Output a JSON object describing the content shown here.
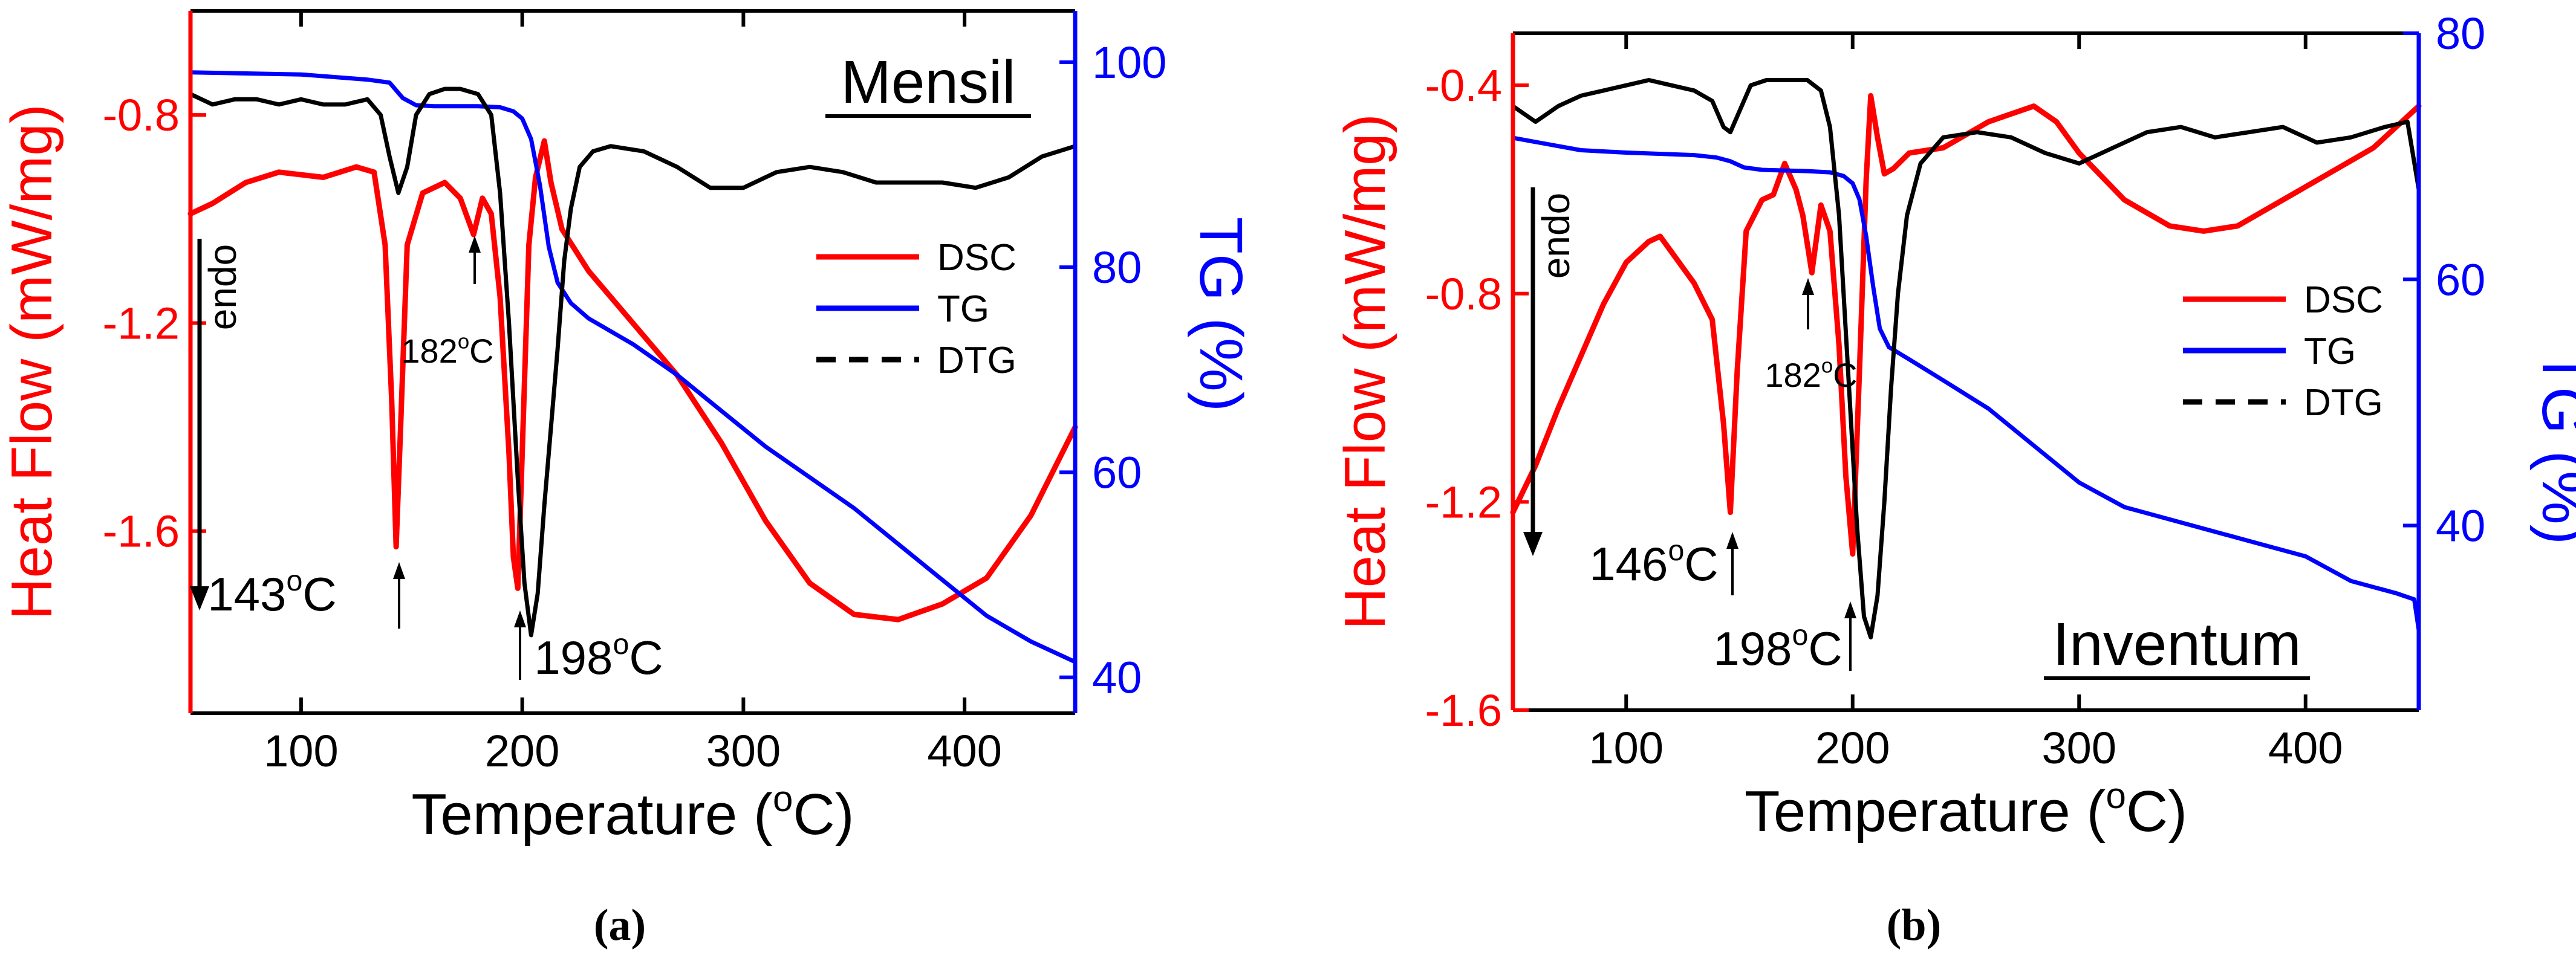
{
  "chart_data": [
    {
      "type": "line",
      "panel_label": "(a)",
      "sample_name": "Mensil",
      "xlabel": "Temperature (",
      "xlabel_unit_sup": "o",
      "xlabel_unit_end": "C)",
      "ylabel_left": "Heat Flow (mW/mg)",
      "ylabel_right": "TG (%)",
      "xlim": [
        50,
        450
      ],
      "ylim_left": [
        -1.95,
        -0.6
      ],
      "ylim_right": [
        36.5,
        105
      ],
      "x_ticks": [
        "100",
        "200",
        "300",
        "400"
      ],
      "x_tick_values": [
        100,
        200,
        300,
        400
      ],
      "y_left_ticks": [
        "-0.8",
        "-1.2",
        "-1.6"
      ],
      "y_left_tick_values": [
        -0.8,
        -1.2,
        -1.6
      ],
      "y_right_ticks": [
        "100",
        "80",
        "60",
        "40"
      ],
      "y_right_tick_values": [
        100,
        80,
        60,
        40
      ],
      "legend": [
        "DSC",
        "TG",
        "DTG"
      ],
      "legend_placement": "center-right",
      "grid": false,
      "annotations": {
        "endo": "endo",
        "peak1": {
          "text": "143",
          "unit": "C",
          "x": 143
        },
        "peak2": {
          "text": "182",
          "unit": "C",
          "x": 182
        },
        "peak3": {
          "text": "198",
          "unit": "C",
          "x": 198
        }
      },
      "colors": {
        "DSC": "#ff0000",
        "TG": "#0000ff",
        "DTG": "#000000"
      },
      "series": [
        {
          "name": "DSC",
          "axis": "left",
          "x": [
            50,
            60,
            75,
            90,
            110,
            125,
            133,
            138,
            141,
            143,
            145,
            148,
            155,
            165,
            172,
            178,
            182,
            186,
            190,
            194,
            196,
            198,
            200,
            203,
            206,
            210,
            213,
            218,
            230,
            250,
            270,
            290,
            310,
            330,
            350,
            370,
            390,
            410,
            430,
            450
          ],
          "y": [
            -0.99,
            -0.97,
            -0.93,
            -0.91,
            -0.92,
            -0.9,
            -0.91,
            -1.05,
            -1.35,
            -1.63,
            -1.4,
            -1.05,
            -0.95,
            -0.93,
            -0.96,
            -1.03,
            -0.96,
            -0.99,
            -1.15,
            -1.45,
            -1.65,
            -1.71,
            -1.45,
            -1.05,
            -0.92,
            -0.85,
            -0.93,
            -1.02,
            -1.1,
            -1.2,
            -1.3,
            -1.43,
            -1.58,
            -1.7,
            -1.76,
            -1.77,
            -1.74,
            -1.69,
            -1.57,
            -1.4
          ]
        },
        {
          "name": "TG",
          "axis": "right",
          "x": [
            50,
            100,
            130,
            140,
            146,
            152,
            160,
            170,
            180,
            190,
            196,
            200,
            204,
            208,
            212,
            216,
            222,
            230,
            250,
            270,
            290,
            310,
            330,
            350,
            370,
            390,
            410,
            430,
            450
          ],
          "y": [
            99,
            98.8,
            98.3,
            98,
            96.5,
            95.8,
            95.7,
            95.7,
            95.7,
            95.6,
            95.2,
            94.5,
            92.5,
            88,
            82,
            78.5,
            76.5,
            75,
            72.5,
            69.5,
            66,
            62.5,
            59.5,
            56.5,
            53,
            49.5,
            46,
            43.5,
            41.5
          ]
        },
        {
          "name": "DTG",
          "axis": "left",
          "x": [
            50,
            60,
            70,
            80,
            90,
            100,
            110,
            120,
            130,
            136,
            140,
            144,
            148,
            152,
            158,
            165,
            172,
            180,
            186,
            190,
            194,
            198,
            201,
            204,
            207,
            210,
            213,
            216,
            219,
            222,
            226,
            232,
            240,
            255,
            270,
            285,
            300,
            315,
            330,
            345,
            360,
            375,
            390,
            405,
            420,
            435,
            450
          ],
          "y": [
            -0.76,
            -0.78,
            -0.77,
            -0.77,
            -0.78,
            -0.77,
            -0.78,
            -0.78,
            -0.77,
            -0.8,
            -0.88,
            -0.95,
            -0.9,
            -0.8,
            -0.76,
            -0.75,
            -0.75,
            -0.76,
            -0.8,
            -0.95,
            -1.2,
            -1.5,
            -1.7,
            -1.8,
            -1.72,
            -1.55,
            -1.4,
            -1.25,
            -1.08,
            -0.98,
            -0.9,
            -0.87,
            -0.86,
            -0.87,
            -0.9,
            -0.94,
            -0.94,
            -0.91,
            -0.9,
            -0.91,
            -0.93,
            -0.93,
            -0.93,
            -0.94,
            -0.92,
            -0.88,
            -0.86
          ]
        }
      ]
    },
    {
      "type": "line",
      "panel_label": "(b)",
      "sample_name": "Inventum",
      "xlabel": "Temperature (",
      "xlabel_unit_sup": "o",
      "xlabel_unit_end": "C)",
      "ylabel_left": "Heat Flow (mW/mg)",
      "ylabel_right": "TG (%)",
      "xlim": [
        50,
        450
      ],
      "ylim_left": [
        -1.6,
        -0.3
      ],
      "ylim_right": [
        25,
        80
      ],
      "x_ticks": [
        "100",
        "200",
        "300",
        "400"
      ],
      "x_tick_values": [
        100,
        200,
        300,
        400
      ],
      "y_left_ticks": [
        "-0.4",
        "-0.8",
        "-1.2",
        "-1.6"
      ],
      "y_left_tick_values": [
        -0.4,
        -0.8,
        -1.2,
        -1.6
      ],
      "y_right_ticks": [
        "80",
        "60",
        "40"
      ],
      "y_right_tick_values": [
        80,
        60,
        40
      ],
      "legend": [
        "DSC",
        "TG",
        "DTG"
      ],
      "legend_placement": "center-right",
      "grid": false,
      "annotations": {
        "endo": "endo",
        "peak1": {
          "text": "146",
          "unit": "C",
          "x": 146
        },
        "peak2": {
          "text": "182",
          "unit": "C",
          "x": 182
        },
        "peak3": {
          "text": "198",
          "unit": "C",
          "x": 198
        }
      },
      "colors": {
        "DSC": "#ff0000",
        "TG": "#0000ff",
        "DTG": "#000000"
      },
      "series": [
        {
          "name": "DSC",
          "axis": "left",
          "x": [
            50,
            60,
            70,
            80,
            90,
            100,
            110,
            115,
            120,
            130,
            138,
            143,
            146,
            149,
            153,
            160,
            165,
            170,
            175,
            178,
            182,
            186,
            190,
            194,
            197,
            200,
            203,
            206,
            208,
            211,
            214,
            218,
            225,
            240,
            260,
            280,
            290,
            300,
            320,
            340,
            355,
            370,
            390,
            410,
            430,
            450
          ],
          "y": [
            -1.22,
            -1.13,
            -1.02,
            -0.92,
            -0.82,
            -0.74,
            -0.7,
            -0.69,
            -0.72,
            -0.78,
            -0.85,
            -1.05,
            -1.22,
            -0.95,
            -0.68,
            -0.62,
            -0.61,
            -0.55,
            -0.6,
            -0.65,
            -0.76,
            -0.63,
            -0.68,
            -0.9,
            -1.15,
            -1.3,
            -0.95,
            -0.58,
            -0.42,
            -0.5,
            -0.57,
            -0.56,
            -0.53,
            -0.52,
            -0.47,
            -0.44,
            -0.47,
            -0.53,
            -0.62,
            -0.67,
            -0.68,
            -0.67,
            -0.62,
            -0.57,
            -0.52,
            -0.44
          ]
        },
        {
          "name": "TG",
          "axis": "right",
          "x": [
            50,
            80,
            100,
            130,
            140,
            146,
            152,
            160,
            180,
            190,
            196,
            200,
            203,
            206,
            209,
            212,
            216,
            225,
            240,
            260,
            280,
            300,
            320,
            340,
            360,
            380,
            400,
            420,
            440,
            448,
            450
          ],
          "y": [
            71.5,
            70.5,
            70.3,
            70.1,
            69.9,
            69.6,
            69.1,
            68.9,
            68.8,
            68.7,
            68.4,
            67.8,
            66.5,
            63.5,
            59.5,
            56,
            54.5,
            53.5,
            51.8,
            49.5,
            46.5,
            43.5,
            41.5,
            40.5,
            39.5,
            38.5,
            37.5,
            35.5,
            34.5,
            34,
            31.5
          ]
        },
        {
          "name": "DTG",
          "axis": "left",
          "x": [
            50,
            60,
            70,
            80,
            90,
            100,
            110,
            120,
            130,
            138,
            143,
            146,
            150,
            155,
            162,
            170,
            180,
            186,
            190,
            194,
            198,
            202,
            205,
            208,
            211,
            214,
            217,
            220,
            224,
            230,
            240,
            255,
            270,
            285,
            300,
            315,
            330,
            345,
            360,
            375,
            390,
            405,
            420,
            435,
            445,
            450
          ],
          "y": [
            -0.44,
            -0.47,
            -0.44,
            -0.42,
            -0.41,
            -0.4,
            -0.39,
            -0.4,
            -0.41,
            -0.43,
            -0.48,
            -0.49,
            -0.45,
            -0.4,
            -0.39,
            -0.39,
            -0.39,
            -0.41,
            -0.48,
            -0.65,
            -0.95,
            -1.25,
            -1.42,
            -1.46,
            -1.38,
            -1.2,
            -0.98,
            -0.8,
            -0.65,
            -0.55,
            -0.5,
            -0.49,
            -0.5,
            -0.53,
            -0.55,
            -0.52,
            -0.49,
            -0.48,
            -0.5,
            -0.49,
            -0.48,
            -0.51,
            -0.5,
            -0.48,
            -0.47,
            -0.6
          ]
        }
      ]
    }
  ]
}
